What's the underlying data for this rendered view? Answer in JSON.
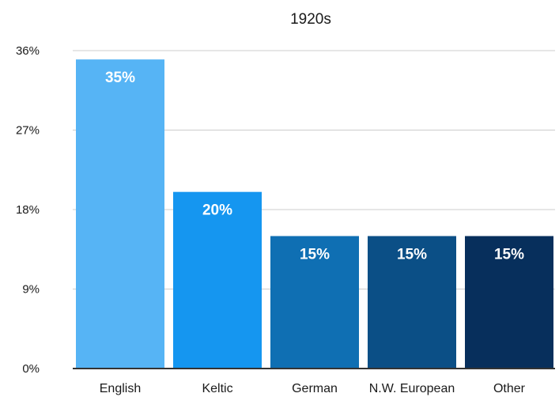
{
  "chart_data": {
    "type": "bar",
    "title": "1920s",
    "xlabel": "",
    "ylabel": "",
    "categories": [
      "English",
      "Keltic",
      "German",
      "N.W. European",
      "Other"
    ],
    "values": [
      35,
      20,
      15,
      15,
      15
    ],
    "data_labels": [
      "35%",
      "20%",
      "15%",
      "15%",
      "15%"
    ],
    "ylim": [
      0,
      36
    ],
    "yticks": [
      0,
      9,
      18,
      27,
      36
    ],
    "ytick_labels": [
      "0%",
      "9%",
      "18%",
      "27%",
      "36%"
    ],
    "grid": "horizontal",
    "legend": "none",
    "bar_colors": [
      "#56b4f5",
      "#1596f0",
      "#0f6fb3",
      "#0b4f86",
      "#072f5c"
    ],
    "grid_color": "#cccccc",
    "axis_color": "#333333"
  }
}
